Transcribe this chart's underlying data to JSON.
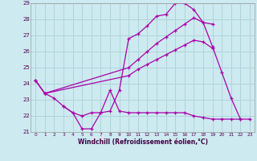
{
  "xlabel": "Windchill (Refroidissement éolien,°C)",
  "xlim": [
    -0.5,
    23.5
  ],
  "ylim": [
    21,
    29
  ],
  "yticks": [
    21,
    22,
    23,
    24,
    25,
    26,
    27,
    28,
    29
  ],
  "xticks": [
    0,
    1,
    2,
    3,
    4,
    5,
    6,
    7,
    8,
    9,
    10,
    11,
    12,
    13,
    14,
    15,
    16,
    17,
    18,
    19,
    20,
    21,
    22,
    23
  ],
  "bg_color": "#cdeaf0",
  "grid_color": "#afd4da",
  "line_color": "#aa00aa",
  "lines": [
    {
      "x": [
        0,
        1,
        2,
        3,
        4,
        5,
        6,
        7,
        8,
        9,
        10,
        11,
        12,
        13,
        14,
        15,
        16,
        17,
        18,
        19,
        20,
        21,
        22
      ],
      "y": [
        24.2,
        23.4,
        23.1,
        22.6,
        22.2,
        21.2,
        21.2,
        22.2,
        22.3,
        23.6,
        26.8,
        27.1,
        27.6,
        28.2,
        28.3,
        29.0,
        29.0,
        28.6,
        27.8,
        26.3,
        24.7,
        23.1,
        21.8
      ]
    },
    {
      "x": [
        0,
        1,
        10,
        11,
        12,
        13,
        14,
        15,
        16,
        17,
        18,
        19
      ],
      "y": [
        24.2,
        23.4,
        25.0,
        25.5,
        26.0,
        26.5,
        26.9,
        27.3,
        27.7,
        28.1,
        27.8,
        27.7
      ]
    },
    {
      "x": [
        0,
        1,
        10,
        11,
        12,
        13,
        14,
        15,
        16,
        17,
        18,
        19
      ],
      "y": [
        24.2,
        23.4,
        24.5,
        24.9,
        25.2,
        25.5,
        25.8,
        26.1,
        26.4,
        26.7,
        26.6,
        26.2
      ]
    },
    {
      "x": [
        3,
        4,
        5,
        6,
        7,
        8,
        9,
        10,
        11,
        12,
        13,
        14,
        15,
        16,
        17,
        18,
        19,
        20,
        21,
        22,
        23
      ],
      "y": [
        22.6,
        22.2,
        22.0,
        22.2,
        22.2,
        23.6,
        22.3,
        22.2,
        22.2,
        22.2,
        22.2,
        22.2,
        22.2,
        22.2,
        22.0,
        21.9,
        21.8,
        21.8,
        21.8,
        21.8,
        21.8
      ]
    }
  ]
}
